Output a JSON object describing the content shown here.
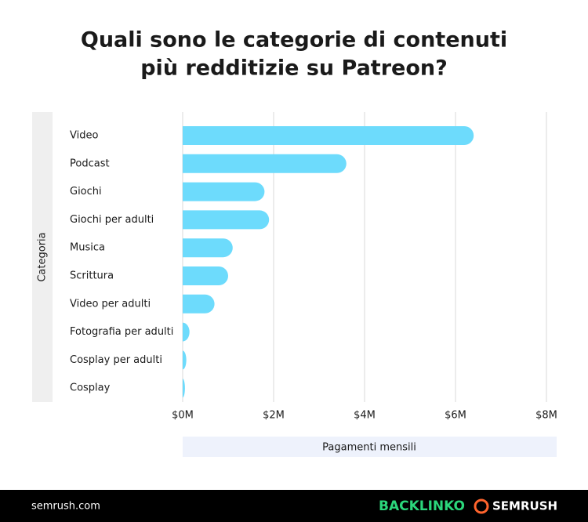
{
  "chart_data": {
    "type": "bar",
    "orientation": "horizontal",
    "title": [
      "Quali sono le categorie di contenuti",
      "più redditizie su Patreon?"
    ],
    "y_label": "Categoria",
    "x_label": "Pagamenti mensili",
    "categories": [
      "Video",
      "Podcast",
      "Giochi",
      "Giochi per adulti",
      "Musica",
      "Scrittura",
      "Video per adulti",
      "Fotografia per adulti",
      "Cosplay per adulti",
      "Cosplay"
    ],
    "values": [
      6.4,
      3.6,
      1.8,
      1.9,
      1.1,
      1.0,
      0.7,
      0.15,
      0.08,
      0.05
    ],
    "color": "#6ddbfc",
    "xlim": [
      0,
      8
    ],
    "xticks": [
      {
        "value": 0,
        "label": "$0M"
      },
      {
        "value": 2,
        "label": "$2M"
      },
      {
        "value": 4,
        "label": "$4M"
      },
      {
        "value": 6,
        "label": "$6M"
      },
      {
        "value": 8,
        "label": "$8M"
      }
    ],
    "grid": true
  },
  "footer": {
    "site": "semrush.com",
    "logos": [
      "BACKLINKO",
      "SEMRUSH"
    ]
  }
}
